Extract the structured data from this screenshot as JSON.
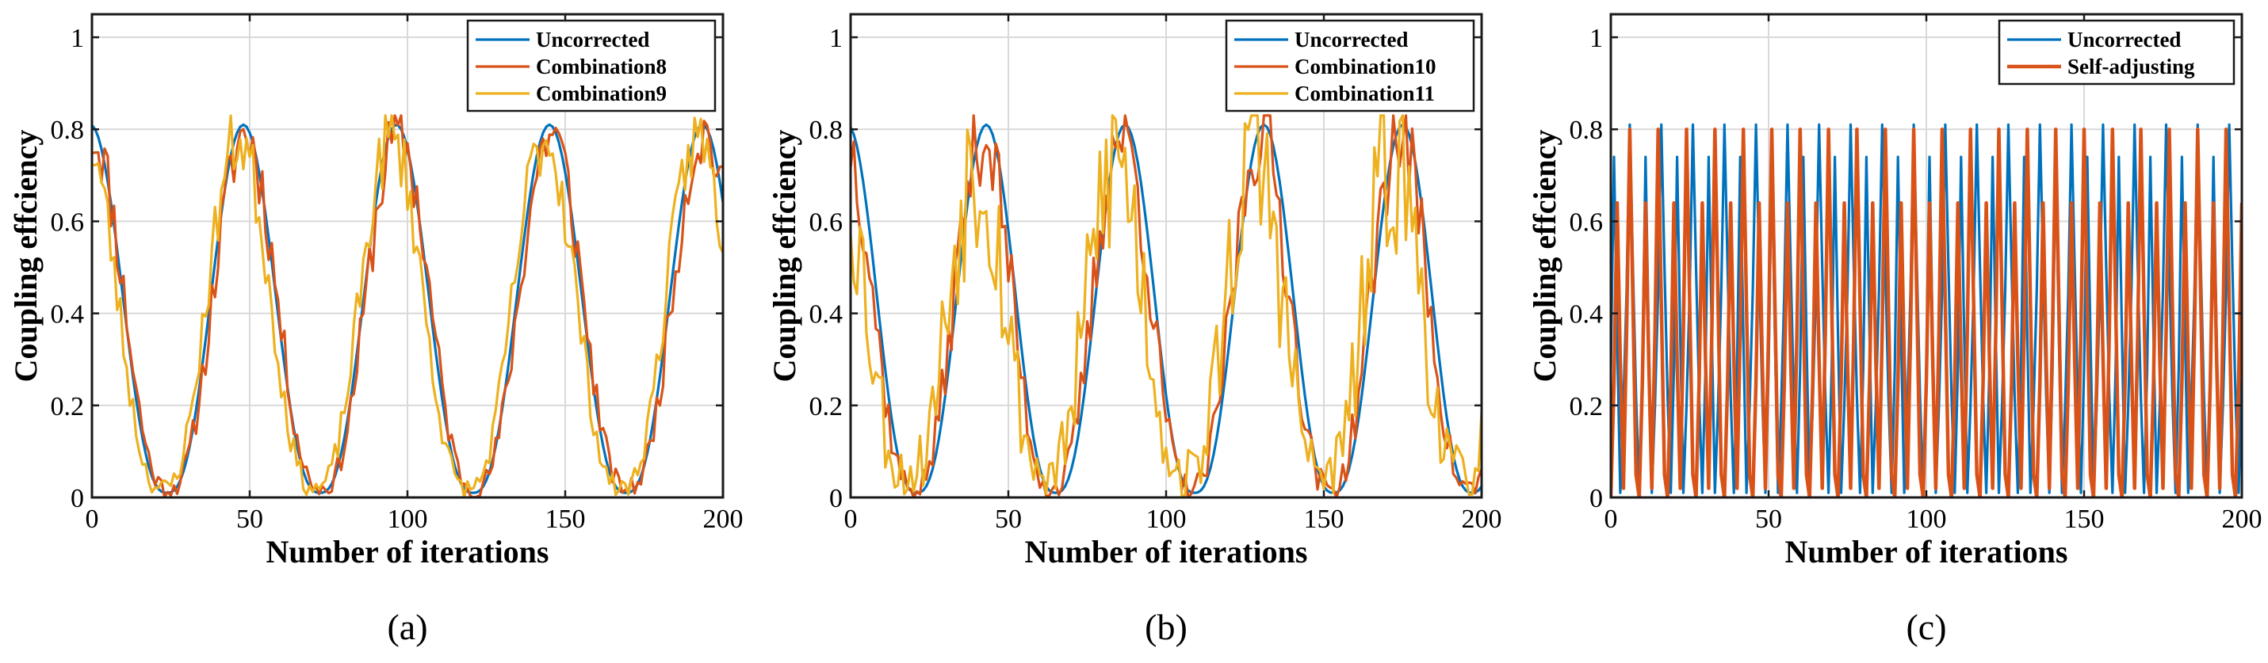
{
  "chart_data": [
    {
      "type": "line",
      "caption": "(a)",
      "xlabel": "Number of iterations",
      "ylabel": "Coupling effciency",
      "xlim": [
        0,
        200
      ],
      "ylim": [
        0,
        1.05
      ],
      "xticks": [
        0,
        50,
        100,
        150,
        200
      ],
      "yticks": [
        0,
        0.2,
        0.4,
        0.6,
        0.8,
        1
      ],
      "xtick_labels": [
        "0",
        "50",
        "100",
        "150",
        "200"
      ],
      "ytick_labels": [
        "0",
        "0.2",
        "0.4",
        "0.6",
        "0.8",
        "1"
      ],
      "grid": true,
      "legend_position": "top-right",
      "series": [
        {
          "name": "Uncorrected",
          "color": "#0072BD",
          "gen": {
            "kind": "sine",
            "period": 48.5,
            "peak_x": 48,
            "floor": 0.01,
            "ceil": 0.81,
            "noise": 0
          }
        },
        {
          "name": "Combination8",
          "color": "#D95319",
          "gen": {
            "kind": "sine",
            "period": 48.5,
            "peak_x": 97,
            "floor": 0.02,
            "ceil": 0.79,
            "noise": 0.06,
            "seed": 11
          }
        },
        {
          "name": "Combination9",
          "color": "#EDB120",
          "gen": {
            "kind": "sine",
            "period": 48.5,
            "peak_x": 95,
            "floor": 0.02,
            "ceil": 0.78,
            "noise": 0.06,
            "seed": 23
          }
        }
      ]
    },
    {
      "type": "line",
      "caption": "(b)",
      "xlabel": "Number of iterations",
      "ylabel": "Coupling effciency",
      "xlim": [
        0,
        200
      ],
      "ylim": [
        0,
        1.05
      ],
      "xticks": [
        0,
        50,
        100,
        150,
        200
      ],
      "yticks": [
        0,
        0.2,
        0.4,
        0.6,
        0.8,
        1
      ],
      "xtick_labels": [
        "0",
        "50",
        "100",
        "150",
        "200"
      ],
      "ytick_labels": [
        "0",
        "0.2",
        "0.4",
        "0.6",
        "0.8",
        "1"
      ],
      "grid": true,
      "legend_position": "top-right",
      "series": [
        {
          "name": "Uncorrected",
          "color": "#0072BD",
          "gen": {
            "kind": "sine",
            "period": 44,
            "peak_x": 43,
            "floor": 0.01,
            "ceil": 0.81,
            "noise": 0
          }
        },
        {
          "name": "Combination10",
          "color": "#D95319",
          "gen": {
            "kind": "sine",
            "period": 44,
            "peak_x": 86,
            "floor": 0.02,
            "ceil": 0.79,
            "noise": 0.08,
            "seed": 37
          }
        },
        {
          "name": "Combination11",
          "color": "#EDB120",
          "gen": {
            "kind": "sine",
            "period": 44,
            "peak_x": 84,
            "floor": 0.05,
            "ceil": 0.74,
            "noise": 0.16,
            "seed": 53
          }
        }
      ]
    },
    {
      "type": "line",
      "caption": "(c)",
      "xlabel": "Number of iterations",
      "ylabel": "Coupling effciency",
      "xlim": [
        0,
        200
      ],
      "ylim": [
        0,
        1.05
      ],
      "xticks": [
        0,
        50,
        100,
        150,
        200
      ],
      "yticks": [
        0,
        0.2,
        0.4,
        0.6,
        0.8,
        1
      ],
      "xtick_labels": [
        "0",
        "50",
        "100",
        "150",
        "200"
      ],
      "ytick_labels": [
        "0",
        "0.2",
        "0.4",
        "0.6",
        "0.8",
        "1"
      ],
      "grid": true,
      "legend_position": "top-right",
      "series": [
        {
          "name": "Uncorrected",
          "color": "#0072BD",
          "gen": {
            "kind": "cycle",
            "step": 1,
            "pattern": [
              0.01,
              0.2,
              0.45,
              0.81,
              0.5,
              0.22,
              0.01,
              0.28,
              0.74,
              0.35
            ],
            "phase": 7
          }
        },
        {
          "name": "Self-adjusting",
          "color": "#D95319",
          "gen": {
            "kind": "cycle",
            "step": 1,
            "pattern": [
              0.0,
              0.25,
              0.64,
              0.3,
              0.02,
              0.36,
              0.8,
              0.42,
              0.05
            ],
            "phase": 0
          }
        }
      ]
    }
  ]
}
